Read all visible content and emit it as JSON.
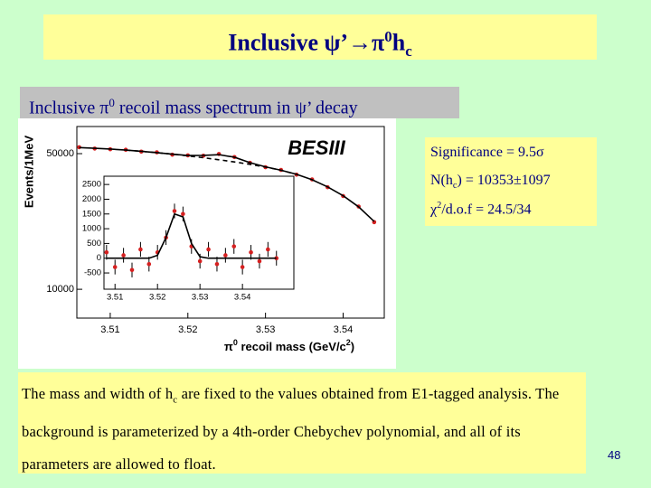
{
  "header": {
    "title": {
      "prefix": "Inclusive ψ’",
      "arrow": "→",
      "meson": "π",
      "meson_sup": "0",
      "product": "h",
      "product_sub": "c"
    }
  },
  "subtitle": {
    "prefix": "Inclusive π",
    "sup": "0",
    "suffix": " recoil mass spectrum in ψ’ decay"
  },
  "results": {
    "significance": "Significance = 9.5σ",
    "yield": {
      "prefix": "N(h",
      "sub": "c",
      "suffix": ") = 10353±1097"
    },
    "chi2": {
      "prefix": "χ",
      "sup": "2",
      "suffix": "/d.o.f  = 24.5/34"
    }
  },
  "note": {
    "prefix": "The mass and width of h",
    "sub": "c",
    "suffix": " are fixed to the values obtained from E1-tagged analysis. The background is parameterized by a 4th-order Chebychev polynomial, and all of its parameters are allowed to float."
  },
  "page_number": "48",
  "chart_data": [
    {
      "type": "scatter",
      "annotation": "BESIII",
      "x_label": [
        "π",
        "0",
        " recoil mass (GeV/c",
        "2",
        ")"
      ],
      "y_label": "Events/1MeV",
      "x": [
        3.506,
        3.508,
        3.51,
        3.512,
        3.514,
        3.516,
        3.518,
        3.52,
        3.522,
        3.524,
        3.526,
        3.528,
        3.53,
        3.532,
        3.534,
        3.536,
        3.538,
        3.54,
        3.542,
        3.544
      ],
      "series": [
        {
          "color": "#d62020",
          "values": [
            51900,
            51500,
            51300,
            51150,
            50600,
            50400,
            49700,
            49500,
            49400,
            49900,
            49000,
            47300,
            46000,
            45200,
            43800,
            42400,
            40100,
            37500,
            34400,
            29800
          ]
        },
        {
          "color": "#000000",
          "line": "solid",
          "values": [
            51800,
            51600,
            51350,
            51050,
            50700,
            50300,
            49850,
            49450,
            49500,
            49700,
            48950,
            47350,
            46100,
            45100,
            43900,
            42300,
            40200,
            37600,
            34300,
            30000
          ]
        },
        {
          "color": "#000000",
          "line": "dashed",
          "values": [
            null,
            null,
            null,
            51050,
            50700,
            50300,
            49850,
            49350,
            48800,
            48200,
            47550,
            46850,
            46050,
            45100,
            43900,
            null,
            null,
            null,
            null,
            null
          ]
        }
      ],
      "xlim": [
        3.5057,
        3.5453
      ],
      "ylim": [
        1500,
        58000
      ],
      "xticks": [
        3.51,
        3.52,
        3.53,
        3.54
      ],
      "yticks": [
        10000,
        50000
      ]
    },
    {
      "type": "scatter",
      "x": [
        3.508,
        3.51,
        3.512,
        3.514,
        3.516,
        3.518,
        3.52,
        3.522,
        3.524,
        3.526,
        3.528,
        3.53,
        3.532,
        3.534,
        3.536,
        3.538,
        3.54,
        3.542,
        3.544,
        3.546,
        3.548
      ],
      "series": [
        {
          "color": "#d62020",
          "values": [
            200,
            -300,
            100,
            -400,
            300,
            -200,
            200,
            700,
            1600,
            1500,
            400,
            -100,
            300,
            -200,
            100,
            400,
            -300,
            200,
            -100,
            300,
            0
          ],
          "errors": [
            250,
            250,
            250,
            250,
            250,
            250,
            250,
            250,
            250,
            250,
            250,
            250,
            250,
            250,
            250,
            250,
            250,
            250,
            250,
            250,
            250
          ]
        },
        {
          "color": "#000000",
          "line": "solid",
          "values": [
            0,
            0,
            0,
            0,
            0,
            0,
            100,
            700,
            1500,
            1400,
            500,
            50,
            0,
            0,
            0,
            0,
            0,
            0,
            0,
            0,
            0
          ]
        }
      ],
      "xlim": [
        3.5074,
        3.5521
      ],
      "ylim": [
        -1050,
        2780
      ],
      "xticks": [
        3.51,
        3.52,
        3.53,
        3.54
      ],
      "yticks": [
        -500,
        0,
        500,
        1000,
        1500,
        2000,
        2500
      ]
    }
  ]
}
